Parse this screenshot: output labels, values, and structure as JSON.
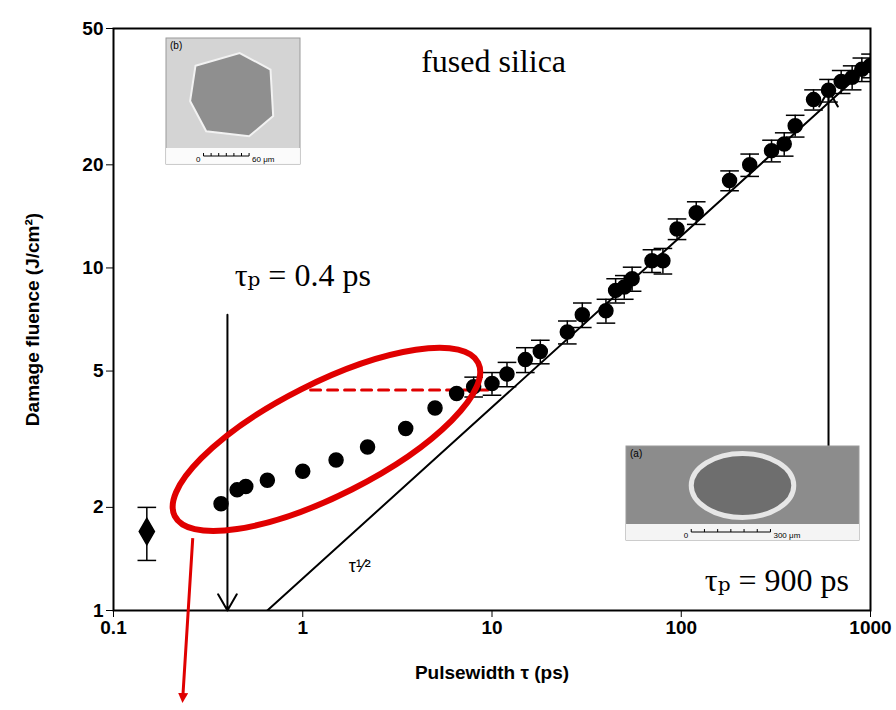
{
  "chart_data": {
    "type": "scatter",
    "x_label": "Pulsewidth τ (ps)",
    "y_label": "Damage fluence (J/cm²)",
    "log": true,
    "grid": false,
    "xlim": [
      0.1,
      1000
    ],
    "ylim": [
      1,
      50
    ],
    "xticks": [
      0.1,
      1,
      10,
      100,
      1000
    ],
    "yticks": [
      1,
      2,
      5,
      10,
      20,
      50
    ],
    "series": [
      {
        "type": "scatter",
        "marker": "diamond",
        "color": "#000000",
        "x": [
          0.15
        ],
        "values": [
          1.7
        ],
        "errors": [
          0.3
        ]
      },
      {
        "type": "scatter",
        "marker": "circle",
        "color": "#000000",
        "x": [
          0.37,
          0.45,
          0.5,
          0.65,
          1.0,
          1.5,
          2.2,
          3.5,
          5,
          6.5,
          8,
          10,
          12,
          15,
          18,
          25,
          30,
          40,
          45,
          50,
          55,
          70,
          80,
          95,
          120,
          180,
          230,
          300,
          350,
          400,
          500,
          600,
          700,
          800,
          900,
          1000
        ],
        "values": [
          2.05,
          2.25,
          2.3,
          2.4,
          2.55,
          2.75,
          3.0,
          3.4,
          3.9,
          4.3,
          4.5,
          4.6,
          4.9,
          5.4,
          5.7,
          6.5,
          7.3,
          7.5,
          8.6,
          8.8,
          9.3,
          10.5,
          10.5,
          13,
          14.5,
          18,
          20,
          22,
          23,
          26,
          31,
          33,
          35,
          36,
          38,
          39
        ],
        "errors": [
          null,
          null,
          null,
          null,
          null,
          null,
          null,
          null,
          null,
          null,
          0.3,
          0.35,
          0.4,
          0.45,
          0.45,
          0.5,
          0.6,
          0.6,
          0.7,
          0.7,
          0.75,
          0.8,
          0.9,
          0.9,
          1.1,
          1.2,
          1.5,
          1.6,
          1.8,
          1.9,
          2.1,
          2.5,
          2.7,
          2.9,
          3.0,
          3.1
        ]
      },
      {
        "type": "line",
        "color": "#000000",
        "line_style": "solid",
        "x": [
          0.65,
          1000
        ],
        "values": [
          1,
          39.2
        ],
        "label": "τ¹⁄²",
        "label_x": 1.75,
        "label_y": 1.35
      }
    ],
    "reference_lines": [
      {
        "y": 4.4,
        "x": [
          1.1,
          9.5
        ],
        "color": "#e00000",
        "line_style": "dashed"
      }
    ],
    "highlight": {
      "color": "#e00000",
      "x": [
        0.212,
        8.5
      ],
      "y": [
        1.88,
        5.27
      ]
    },
    "arrows": [
      {
        "x": 0.4,
        "y": [
          7.3,
          1
        ],
        "color": "#000000"
      },
      {
        "x": 600,
        "y": [
          3.0,
          33
        ],
        "color": "#000000"
      }
    ],
    "annotations": [
      {
        "text": "fused silica",
        "x": 10.2,
        "y": 40
      },
      {
        "text": "τₚ = 0.4 ps",
        "x": 1.0,
        "y": 9.5
      },
      {
        "text": "τₚ = 900 ps",
        "x": 320,
        "y": 1.22
      }
    ],
    "insets": [
      {
        "label": "(b)",
        "scale_bar": [
          "0",
          "60 μm"
        ]
      },
      {
        "label": "(a)",
        "scale_bar": [
          "0",
          "300 μm"
        ]
      }
    ]
  }
}
